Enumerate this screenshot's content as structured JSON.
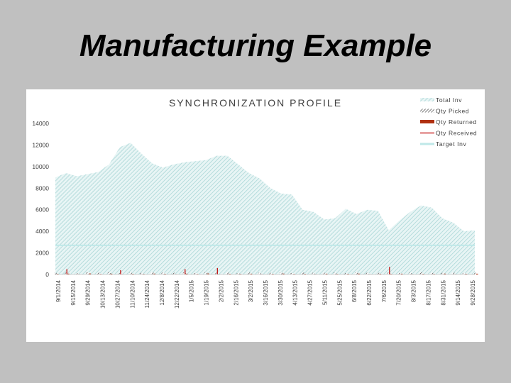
{
  "slide": {
    "title": "Manufacturing Example"
  },
  "chart_data": {
    "type": "area",
    "title": "SYNCHRONIZATION PROFILE",
    "xlabel": "",
    "ylabel": "",
    "ylim": [
      0,
      14000
    ],
    "yticks": [
      0,
      2000,
      4000,
      6000,
      8000,
      10000,
      12000,
      14000
    ],
    "grid": false,
    "legend_position": "top-right",
    "x_tick_labels": [
      "9/1/2014",
      "9/15/2014",
      "9/29/2014",
      "10/13/2014",
      "10/27/2014",
      "11/10/2014",
      "11/24/2014",
      "12/8/2014",
      "12/22/2014",
      "1/5/2015",
      "1/19/2015",
      "2/2/2015",
      "2/16/2015",
      "3/2/2015",
      "3/16/2015",
      "3/30/2015",
      "4/13/2015",
      "4/27/2015",
      "5/11/2015",
      "5/25/2015",
      "6/8/2015",
      "6/22/2015",
      "7/6/2015",
      "7/20/2015",
      "8/3/2015",
      "8/17/2015",
      "8/31/2015",
      "9/14/2015",
      "9/28/2015"
    ],
    "series": [
      {
        "name": "Total Inv",
        "kind": "hatched-area",
        "color": "#b8dcdc",
        "values": [
          9000,
          9400,
          9100,
          9300,
          9500,
          10200,
          11800,
          12200,
          11200,
          10300,
          9900,
          10200,
          10400,
          10500,
          10600,
          11000,
          11000,
          10200,
          9400,
          8900,
          8000,
          7500,
          7400,
          6000,
          5800,
          5100,
          5200,
          6100,
          5600,
          6000,
          5900,
          4100,
          5000,
          5800,
          6400,
          6200,
          5200,
          4800,
          4000,
          4100
        ]
      },
      {
        "name": "Qty Picked",
        "kind": "hatched-bars",
        "color": "#404040",
        "values": [
          150,
          180,
          120,
          200,
          160,
          220,
          140,
          180,
          150,
          200,
          170,
          160,
          190,
          140,
          210,
          150,
          170,
          130,
          180,
          160,
          150,
          200,
          140,
          170,
          160,
          150,
          180,
          130,
          190,
          160,
          150,
          170,
          140,
          180,
          200,
          160,
          150,
          170,
          140,
          160
        ]
      },
      {
        "name": "Qty Returned",
        "kind": "bars",
        "color": "#b03010",
        "values": [
          60,
          80,
          40,
          90,
          50,
          70,
          40,
          60,
          50,
          80,
          60,
          40,
          70,
          50,
          90,
          40,
          60,
          50,
          70,
          40,
          60,
          80,
          50,
          60,
          40,
          70,
          50,
          60,
          80,
          40,
          60,
          50,
          70,
          40,
          60,
          50,
          80,
          40,
          60,
          70
        ]
      },
      {
        "name": "Qty Received",
        "kind": "spikes",
        "color": "#c00000",
        "values": [
          0,
          500,
          0,
          0,
          0,
          0,
          400,
          0,
          0,
          0,
          0,
          0,
          500,
          0,
          0,
          600,
          0,
          0,
          0,
          0,
          0,
          0,
          0,
          0,
          0,
          0,
          0,
          0,
          0,
          0,
          0,
          700,
          0,
          0,
          0,
          0,
          0,
          0,
          0,
          0
        ]
      },
      {
        "name": "Target Inv",
        "kind": "line",
        "color": "#bfe8e8",
        "values": [
          2700,
          2700,
          2700,
          2700,
          2700,
          2700,
          2700,
          2700,
          2700,
          2700,
          2700,
          2700,
          2700,
          2700,
          2700,
          2700,
          2700,
          2700,
          2700,
          2700,
          2700,
          2700,
          2700,
          2700,
          2700,
          2700,
          2700,
          2700,
          2700,
          2700,
          2700,
          2700,
          2700,
          2700,
          2700,
          2700,
          2700,
          2700,
          2700,
          2700
        ]
      }
    ]
  }
}
